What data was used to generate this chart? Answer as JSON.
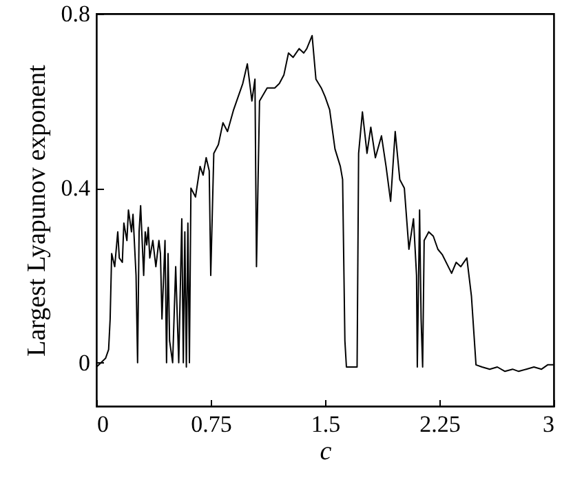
{
  "chart_data": {
    "type": "line",
    "xlabel": "c",
    "ylabel": "Largest Lyapunov exponent",
    "x": [
      0,
      0.03,
      0.06,
      0.08,
      0.09,
      0.1,
      0.12,
      0.14,
      0.15,
      0.17,
      0.18,
      0.2,
      0.21,
      0.23,
      0.24,
      0.26,
      0.27,
      0.28,
      0.29,
      0.31,
      0.32,
      0.33,
      0.34,
      0.35,
      0.37,
      0.39,
      0.41,
      0.42,
      0.43,
      0.45,
      0.46,
      0.47,
      0.48,
      0.5,
      0.52,
      0.54,
      0.56,
      0.57,
      0.58,
      0.59,
      0.6,
      0.61,
      0.62,
      0.65,
      0.68,
      0.7,
      0.72,
      0.74,
      0.75,
      0.77,
      0.8,
      0.83,
      0.86,
      0.9,
      0.93,
      0.96,
      0.99,
      1.02,
      1.04,
      1.05,
      1.07,
      1.12,
      1.17,
      1.2,
      1.23,
      1.26,
      1.29,
      1.33,
      1.36,
      1.38,
      1.415,
      1.44,
      1.475,
      1.5,
      1.53,
      1.565,
      1.6,
      1.615,
      1.63,
      1.64,
      1.67,
      1.71,
      1.72,
      1.745,
      1.775,
      1.8,
      1.83,
      1.87,
      1.9,
      1.93,
      1.96,
      1.99,
      2.02,
      2.05,
      2.08,
      2.1,
      2.105,
      2.12,
      2.13,
      2.14,
      2.15,
      2.18,
      2.21,
      2.24,
      2.27,
      2.33,
      2.36,
      2.39,
      2.43,
      2.46,
      2.49,
      2.53,
      2.58,
      2.63,
      2.68,
      2.73,
      2.77,
      2.82,
      2.87,
      2.92,
      2.96,
      3
    ],
    "values": [
      -0.01,
      0,
      0.01,
      0.03,
      0.1,
      0.25,
      0.22,
      0.3,
      0.24,
      0.23,
      0.32,
      0.28,
      0.35,
      0.3,
      0.34,
      0.2,
      0,
      0.3,
      0.36,
      0.2,
      0.3,
      0.27,
      0.31,
      0.24,
      0.28,
      0.22,
      0.28,
      0.25,
      0.1,
      0.28,
      0,
      0.25,
      0.05,
      0,
      0.22,
      0,
      0.33,
      0,
      0.3,
      -0.01,
      0.32,
      0,
      0.4,
      0.38,
      0.45,
      0.43,
      0.47,
      0.44,
      0.2,
      0.48,
      0.5,
      0.55,
      0.53,
      0.58,
      0.61,
      0.64,
      0.685,
      0.6,
      0.65,
      0.22,
      0.6,
      0.63,
      0.63,
      0.64,
      0.66,
      0.71,
      0.7,
      0.72,
      0.71,
      0.72,
      0.75,
      0.65,
      0.63,
      0.61,
      0.58,
      0.49,
      0.45,
      0.42,
      0.05,
      -0.01,
      -0.01,
      -0.01,
      0.48,
      0.575,
      0.48,
      0.54,
      0.47,
      0.52,
      0.45,
      0.37,
      0.53,
      0.42,
      0.4,
      0.26,
      0.33,
      0.2,
      -0.01,
      0.35,
      0.1,
      -0.01,
      0.28,
      0.3,
      0.29,
      0.26,
      0.247,
      0.205,
      0.23,
      0.22,
      0.24,
      0.153,
      -0.005,
      -0.01,
      -0.015,
      -0.01,
      -0.02,
      -0.015,
      -0.02,
      -0.015,
      -0.01,
      -0.015,
      -0.005,
      -0.005
    ],
    "color": "#000000",
    "xlim": [
      0,
      3
    ],
    "xticks": [
      0,
      0.75,
      1.5,
      2.25,
      3
    ],
    "ylim": [
      -0.1,
      0.8
    ],
    "yticks": [
      0,
      0.4,
      0.8
    ],
    "grid": false
  }
}
